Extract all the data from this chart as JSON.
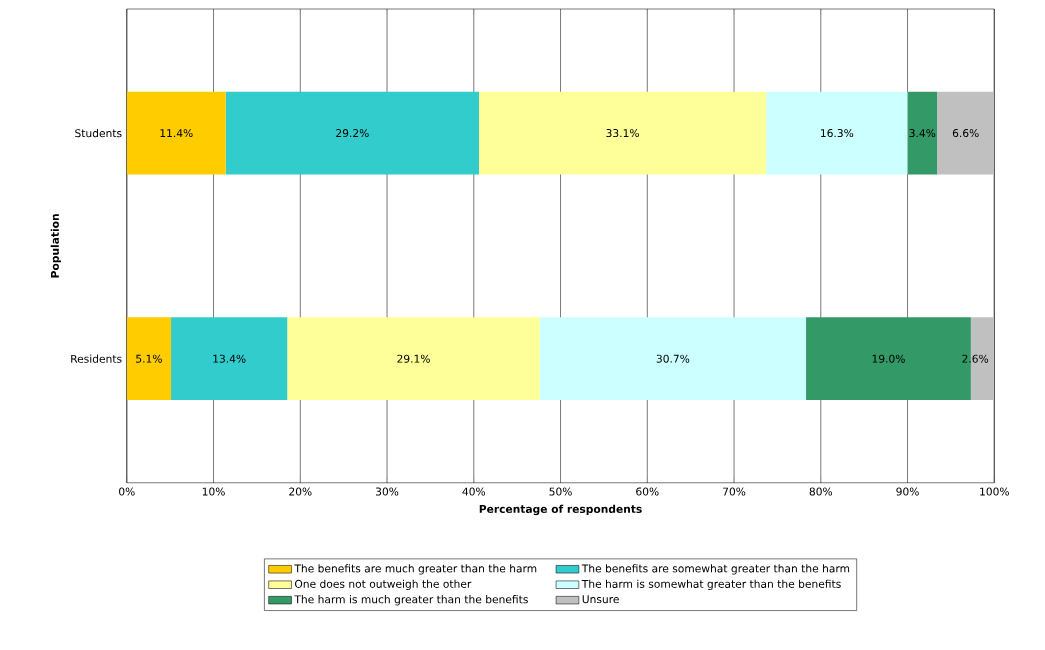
{
  "chart_data": {
    "type": "bar",
    "orientation": "horizontal",
    "stacked": true,
    "xlabel": "Percentage of respondents",
    "ylabel": "Population",
    "categories": [
      "Students",
      "Residents"
    ],
    "series": [
      {
        "name": "The benefits are much greater than the harm",
        "color": "#ffcc00",
        "values": [
          11.4,
          5.1
        ],
        "value_labels": [
          "11.4%",
          "5.1%"
        ]
      },
      {
        "name": "The benefits are somewhat greater than the harm",
        "color": "#33cccc",
        "values": [
          29.2,
          13.4
        ],
        "value_labels": [
          "29.2%",
          "13.4%"
        ]
      },
      {
        "name": "One does not outweigh the other",
        "color": "#ffff99",
        "values": [
          33.1,
          29.1
        ],
        "value_labels": [
          "33.1%",
          "29.1%"
        ]
      },
      {
        "name": "The harm is somewhat greater than the benefits",
        "color": "#ccffff",
        "values": [
          16.3,
          30.7
        ],
        "value_labels": [
          "16.3%",
          "30.7%"
        ]
      },
      {
        "name": "The harm is much greater than the benefits",
        "color": "#339966",
        "values": [
          3.4,
          19.0
        ],
        "value_labels": [
          "3.4%",
          "19.0%"
        ]
      },
      {
        "name": "Unsure",
        "color": "#c0c0c0",
        "values": [
          6.6,
          2.6
        ],
        "value_labels": [
          "6.6%",
          "2.6%"
        ]
      }
    ],
    "xlim": [
      0,
      100
    ],
    "xticks": [
      {
        "value": 0,
        "label": "0%"
      },
      {
        "value": 10,
        "label": "10%"
      },
      {
        "value": 20,
        "label": "20%"
      },
      {
        "value": 30,
        "label": "30%"
      },
      {
        "value": 40,
        "label": "40%"
      },
      {
        "value": 50,
        "label": "50%"
      },
      {
        "value": 60,
        "label": "60%"
      },
      {
        "value": 70,
        "label": "70%"
      },
      {
        "value": 80,
        "label": "80%"
      },
      {
        "value": 90,
        "label": "90%"
      },
      {
        "value": 100,
        "label": "100%"
      }
    ],
    "grid": "x",
    "legend": "bottom"
  }
}
